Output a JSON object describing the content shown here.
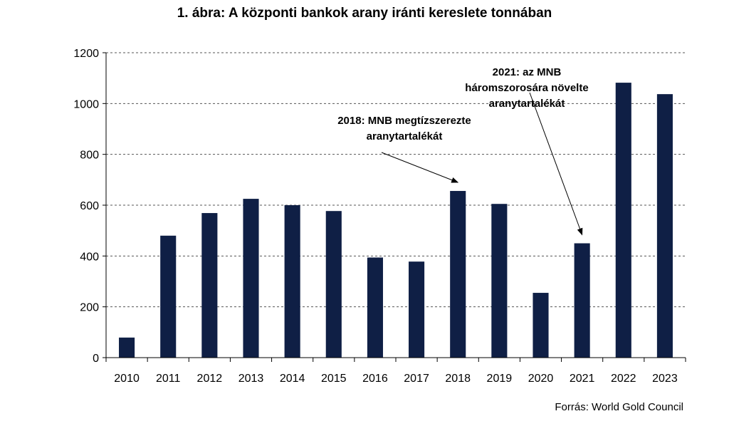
{
  "chart_data": {
    "type": "bar",
    "title": "1.  ábra: A központi bankok arany iránti kereslete tonnában",
    "xlabel": "",
    "ylabel": "",
    "categories": [
      "2010",
      "2011",
      "2012",
      "2013",
      "2014",
      "2015",
      "2016",
      "2017",
      "2018",
      "2019",
      "2020",
      "2021",
      "2022",
      "2023"
    ],
    "values": [
      79,
      480,
      569,
      625,
      600,
      577,
      394,
      378,
      656,
      605,
      255,
      450,
      1082,
      1037
    ],
    "ylim": [
      0,
      1200
    ],
    "yticks": [
      0,
      200,
      400,
      600,
      800,
      1000,
      1200
    ],
    "grid": true,
    "bar_color": "#0f1f45",
    "annotations": [
      {
        "target": "2018",
        "lines": [
          "2018: MNB megtízszerezte",
          "aranytartalékát"
        ]
      },
      {
        "target": "2021",
        "lines": [
          "2021: az MNB",
          "háromszorosára növelte",
          "aranytartalékát"
        ]
      }
    ],
    "source": "Forrás: World Gold Council"
  }
}
